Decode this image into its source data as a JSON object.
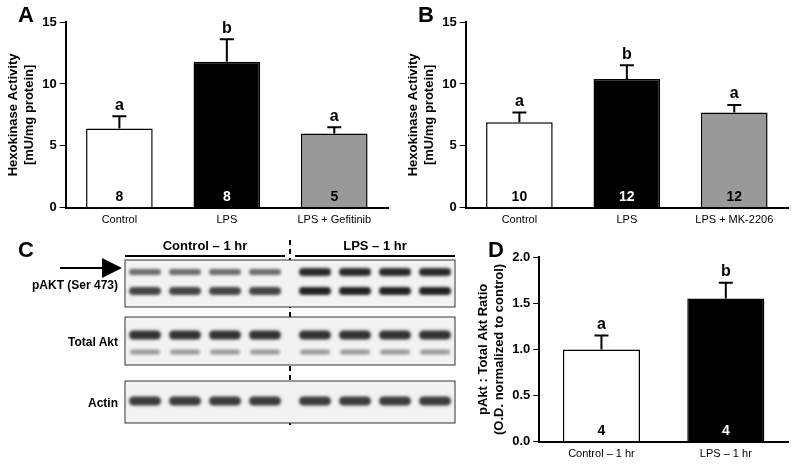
{
  "chart_data": [
    {
      "panel": "A",
      "type": "bar",
      "categories": [
        "Control",
        "LPS",
        "LPS + Gefitinib"
      ],
      "values": [
        6.4,
        11.8,
        6.0
      ],
      "errors": [
        1.0,
        1.8,
        0.5
      ],
      "letters": [
        "a",
        "b",
        "a"
      ],
      "n": [
        8,
        8,
        5
      ],
      "colors": [
        "#ffffff",
        "#000000",
        "#999999"
      ],
      "y_label": [
        "Hexokinase Activity",
        "[mU/mg protein]"
      ],
      "ylim": [
        0,
        15
      ],
      "yticks": [
        0,
        5,
        10,
        15
      ],
      "grid": false
    },
    {
      "panel": "B",
      "type": "bar",
      "categories": [
        "Control",
        "LPS",
        "LPS + MK-2206"
      ],
      "values": [
        6.9,
        10.4,
        7.7
      ],
      "errors": [
        0.8,
        1.1,
        0.6
      ],
      "letters": [
        "a",
        "b",
        "a"
      ],
      "n": [
        10,
        12,
        12
      ],
      "colors": [
        "#ffffff",
        "#000000",
        "#999999"
      ],
      "y_label": [
        "Hexokinase Activity",
        "[mU/mg protein]"
      ],
      "ylim": [
        0,
        15
      ],
      "yticks": [
        0,
        5,
        10,
        15
      ],
      "grid": false
    },
    {
      "panel": "D",
      "type": "bar",
      "categories": [
        "Control – 1 hr",
        "LPS – 1 hr"
      ],
      "values": [
        1.0,
        1.55
      ],
      "errors": [
        0.15,
        0.17
      ],
      "letters": [
        "a",
        "b"
      ],
      "n": [
        4,
        4
      ],
      "colors": [
        "#ffffff",
        "#000000"
      ],
      "y_label": [
        "pAkt : Total Akt Ratio",
        "(O.D. normalized to control)"
      ],
      "ylim": [
        0,
        2
      ],
      "yticks": [
        {
          "value": 0,
          "label": "0.0"
        },
        {
          "value": 0.5,
          "label": "0.5"
        },
        {
          "value": 1,
          "label": "1.0"
        },
        {
          "value": 1.5,
          "label": "1.5"
        },
        {
          "value": 2,
          "label": "2.0"
        }
      ],
      "grid": false
    }
  ],
  "blot": {
    "panel": "C",
    "groups": [
      "Control – 1 hr",
      "LPS – 1 hr"
    ],
    "rows": [
      "pAKT (Ser 473)",
      "Total Akt",
      "Actin"
    ]
  }
}
